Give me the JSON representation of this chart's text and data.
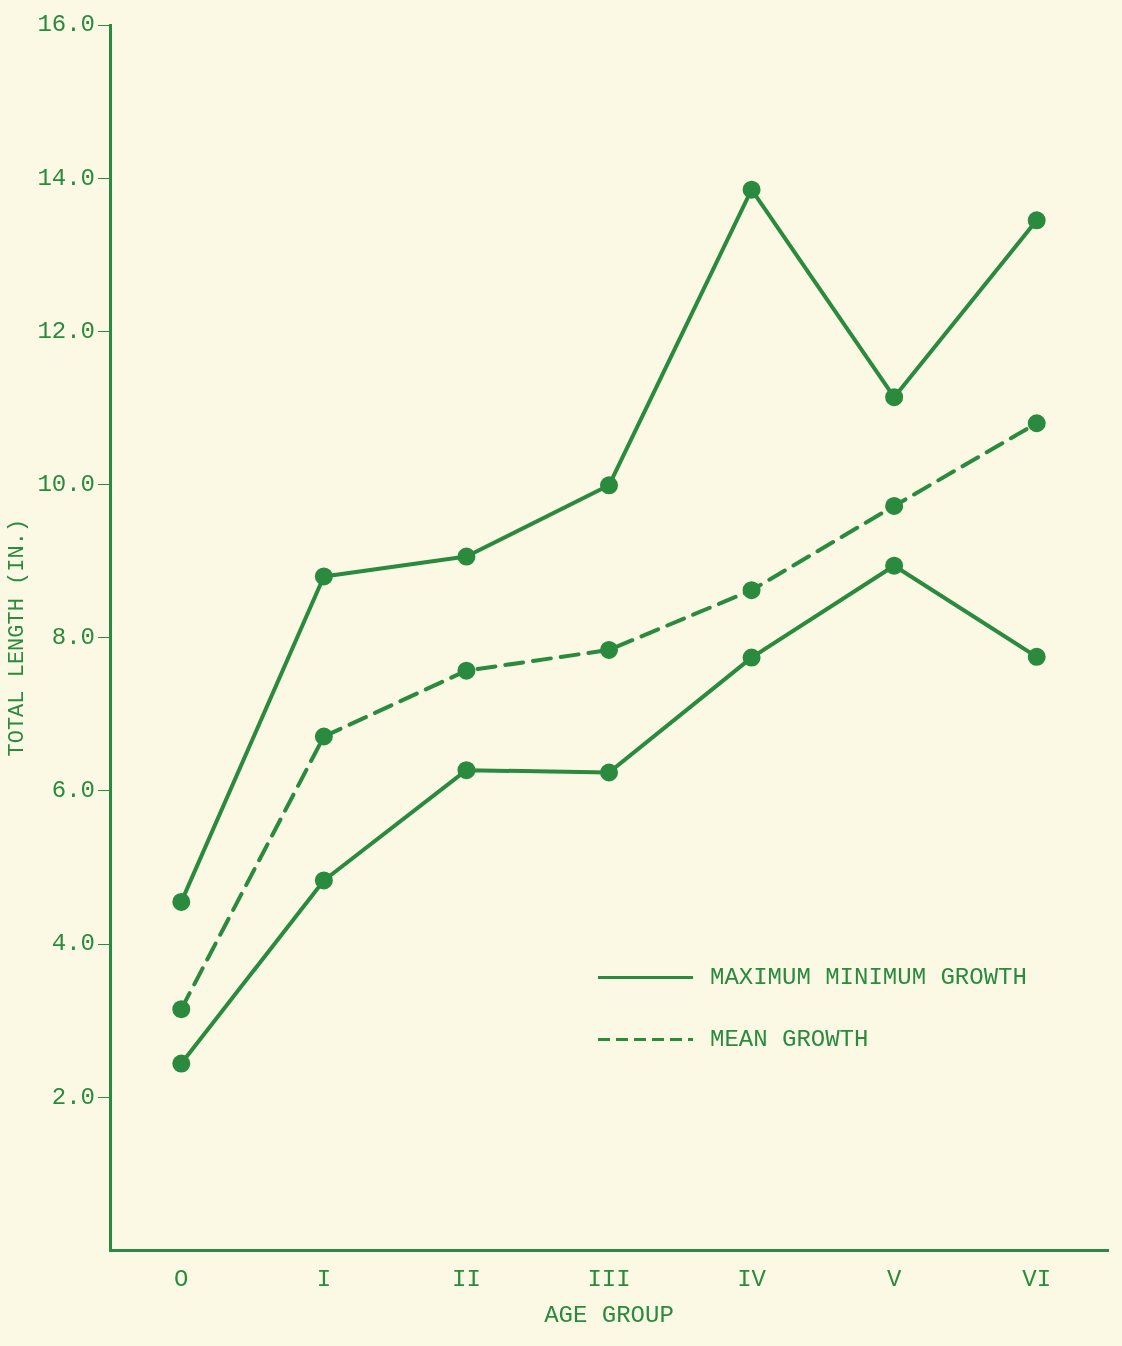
{
  "chart_data": {
    "type": "line",
    "xlabel": "AGE GROUP",
    "ylabel": "TOTAL LENGTH (IN.)",
    "categories": [
      "O",
      "I",
      "II",
      "III",
      "IV",
      "V",
      "VI"
    ],
    "series": [
      {
        "name": "MAXIMUM MINIMUM GROWTH",
        "color": "#2a8a3e",
        "values": [
          4.55,
          8.8,
          9.06,
          9.99,
          13.85,
          11.14,
          13.45
        ],
        "line_style": "solid"
      },
      {
        "name": "MEAN GROWTH",
        "color": "#2a8a3e",
        "values": [
          3.15,
          6.71,
          7.57,
          7.84,
          8.62,
          9.72,
          10.8
        ],
        "line_style": "dashed"
      },
      {
        "color": "#2a8a3e",
        "values": [
          2.44,
          4.83,
          6.27,
          6.24,
          7.74,
          8.94,
          7.75
        ],
        "line_style": "solid"
      }
    ],
    "ylim": [
      0,
      16
    ],
    "yticks": [
      {
        "value": 2,
        "label": "2.0"
      },
      {
        "value": 4,
        "label": "4.0"
      },
      {
        "value": 6,
        "label": "6.0"
      },
      {
        "value": 8,
        "label": "8.0"
      },
      {
        "value": 10,
        "label": "10.0"
      },
      {
        "value": 12,
        "label": "12.0"
      },
      {
        "value": 14,
        "label": "14.0"
      },
      {
        "value": 16,
        "label": "16.0"
      }
    ],
    "grid": false,
    "legend": "bottom right",
    "marker": "circle"
  }
}
